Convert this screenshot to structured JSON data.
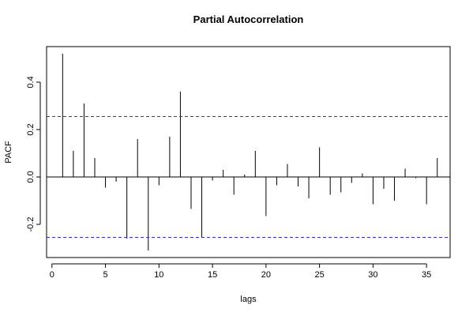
{
  "chart_data": {
    "type": "bar",
    "title": "Partial Autocorrelation",
    "xlabel": "lags",
    "ylabel": "PACF",
    "xlim": [
      -0.5,
      37.2
    ],
    "ylim": [
      -0.34,
      0.55
    ],
    "x_ticks": [
      0,
      5,
      10,
      15,
      20,
      25,
      30,
      35
    ],
    "y_ticks": [
      -0.2,
      0.0,
      0.2,
      0.4
    ],
    "x_tick_labels": [
      "0",
      "5",
      "10",
      "15",
      "20",
      "25",
      "30",
      "35"
    ],
    "y_tick_labels": [
      "-0.2",
      "0.0",
      "0.2",
      "0.4"
    ],
    "confidence_band": 0.255,
    "confidence_color": "#3333cc",
    "x": [
      1,
      2,
      3,
      4,
      5,
      6,
      7,
      8,
      9,
      10,
      11,
      12,
      13,
      14,
      15,
      16,
      17,
      18,
      19,
      20,
      21,
      22,
      23,
      24,
      25,
      26,
      27,
      28,
      29,
      30,
      31,
      32,
      33,
      34,
      35,
      36
    ],
    "values": [
      0.52,
      0.11,
      0.31,
      0.08,
      -0.045,
      -0.02,
      -0.26,
      0.16,
      -0.31,
      -0.035,
      0.17,
      0.36,
      -0.135,
      -0.255,
      -0.015,
      0.03,
      -0.075,
      0.01,
      0.11,
      -0.165,
      -0.035,
      0.055,
      -0.04,
      -0.09,
      0.125,
      -0.075,
      -0.065,
      -0.025,
      0.015,
      -0.115,
      -0.05,
      -0.1,
      0.035,
      -0.005,
      -0.115,
      0.08
    ],
    "grid": false,
    "legend": "none"
  }
}
